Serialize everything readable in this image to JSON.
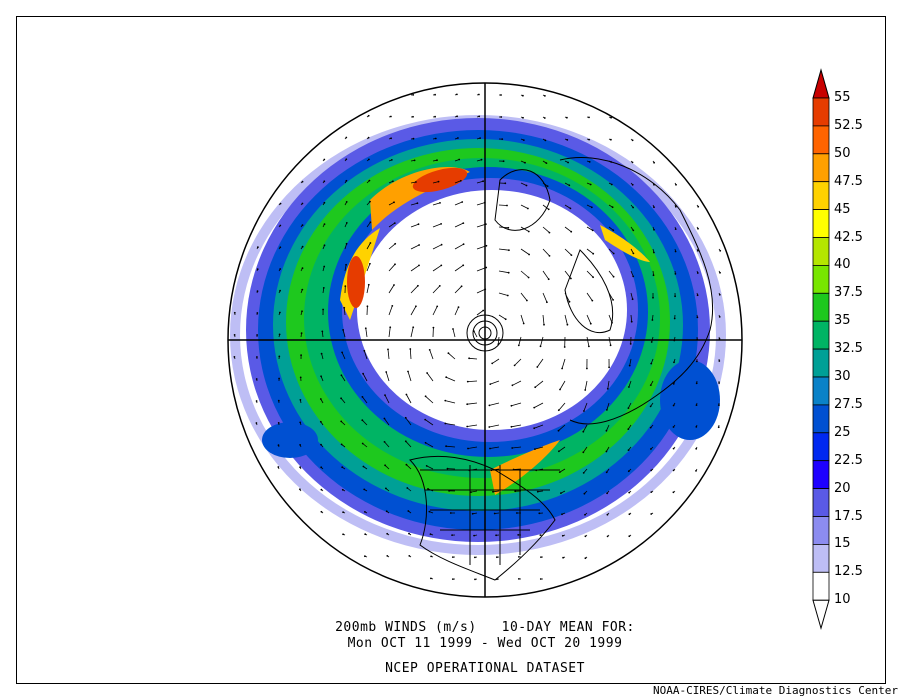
{
  "caption": {
    "line1": "200mb WINDS (m/s)   10-DAY MEAN FOR:",
    "line2": "Mon OCT 11 1999 - Wed OCT 20 1999",
    "line3": "NCEP OPERATIONAL DATASET"
  },
  "credit": "NOAA-CIRES/Climate Diagnostics Center",
  "legend": {
    "levels": [
      "55",
      "52.5",
      "50",
      "47.5",
      "45",
      "42.5",
      "40",
      "37.5",
      "35",
      "32.5",
      "30",
      "27.5",
      "25",
      "22.5",
      "20",
      "17.5",
      "15",
      "12.5",
      "10"
    ],
    "colors": [
      "#c80000",
      "#e63c00",
      "#ff6400",
      "#ffa000",
      "#ffd200",
      "#ffff00",
      "#b4e600",
      "#78e600",
      "#1ec81e",
      "#00b464",
      "#00a096",
      "#0a82c8",
      "#0050d2",
      "#0028f0",
      "#1e00ff",
      "#5a5ae6",
      "#8c8cf0",
      "#bebef5",
      "#ffffff"
    ],
    "units": "m/s"
  },
  "map": {
    "projection": "north-polar-stereographic",
    "field": "200mb wind speed, shaded from 10 m/s with wind vectors",
    "jet_core_colors": {
      "max": "#e63c00",
      "strong": "#ffa000",
      "moderate": "#1ec81e",
      "weak": "#0050d2"
    }
  }
}
